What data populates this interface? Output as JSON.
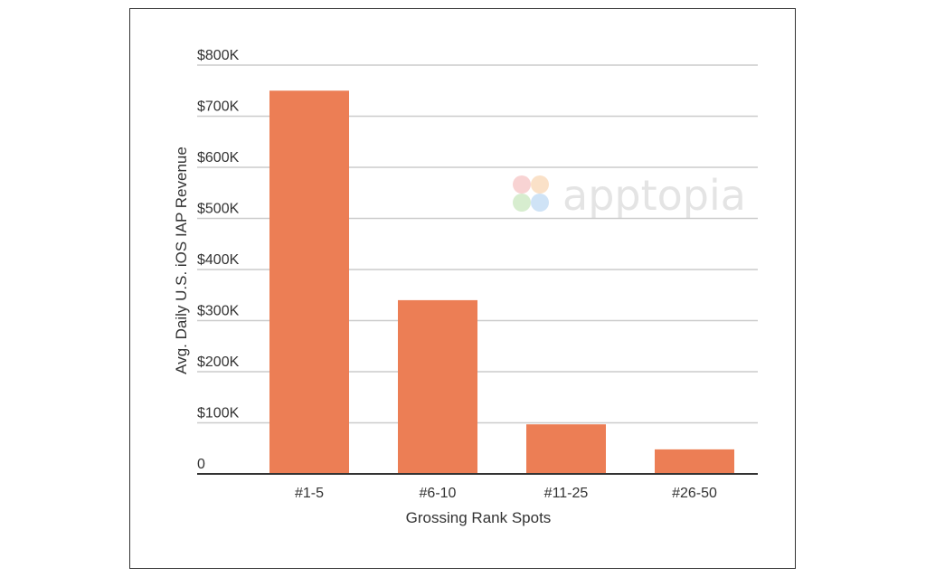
{
  "chart_data": {
    "type": "bar",
    "categories": [
      "#1-5",
      "#6-10",
      "#11-25",
      "#26-50"
    ],
    "values": [
      750000,
      340000,
      97000,
      48000
    ],
    "xlabel": "Grossing Rank Spots",
    "ylabel": "Avg. Daily U.S. iOS IAP Revenue",
    "ylim": [
      0,
      800000
    ],
    "yticks": [
      0,
      100000,
      200000,
      300000,
      400000,
      500000,
      600000,
      700000,
      800000
    ],
    "ytick_labels": [
      "0",
      "$100K",
      "$200K",
      "$300K",
      "$400K",
      "$500K",
      "$600K",
      "$700K",
      "$800K"
    ],
    "grid": true,
    "legend": "none",
    "bar_color": "#ec7e55",
    "grid_color": "#cccccc",
    "axis_color": "#333333"
  },
  "watermark": {
    "text": "apptopia",
    "icon": "apptopia-logo-icon"
  }
}
